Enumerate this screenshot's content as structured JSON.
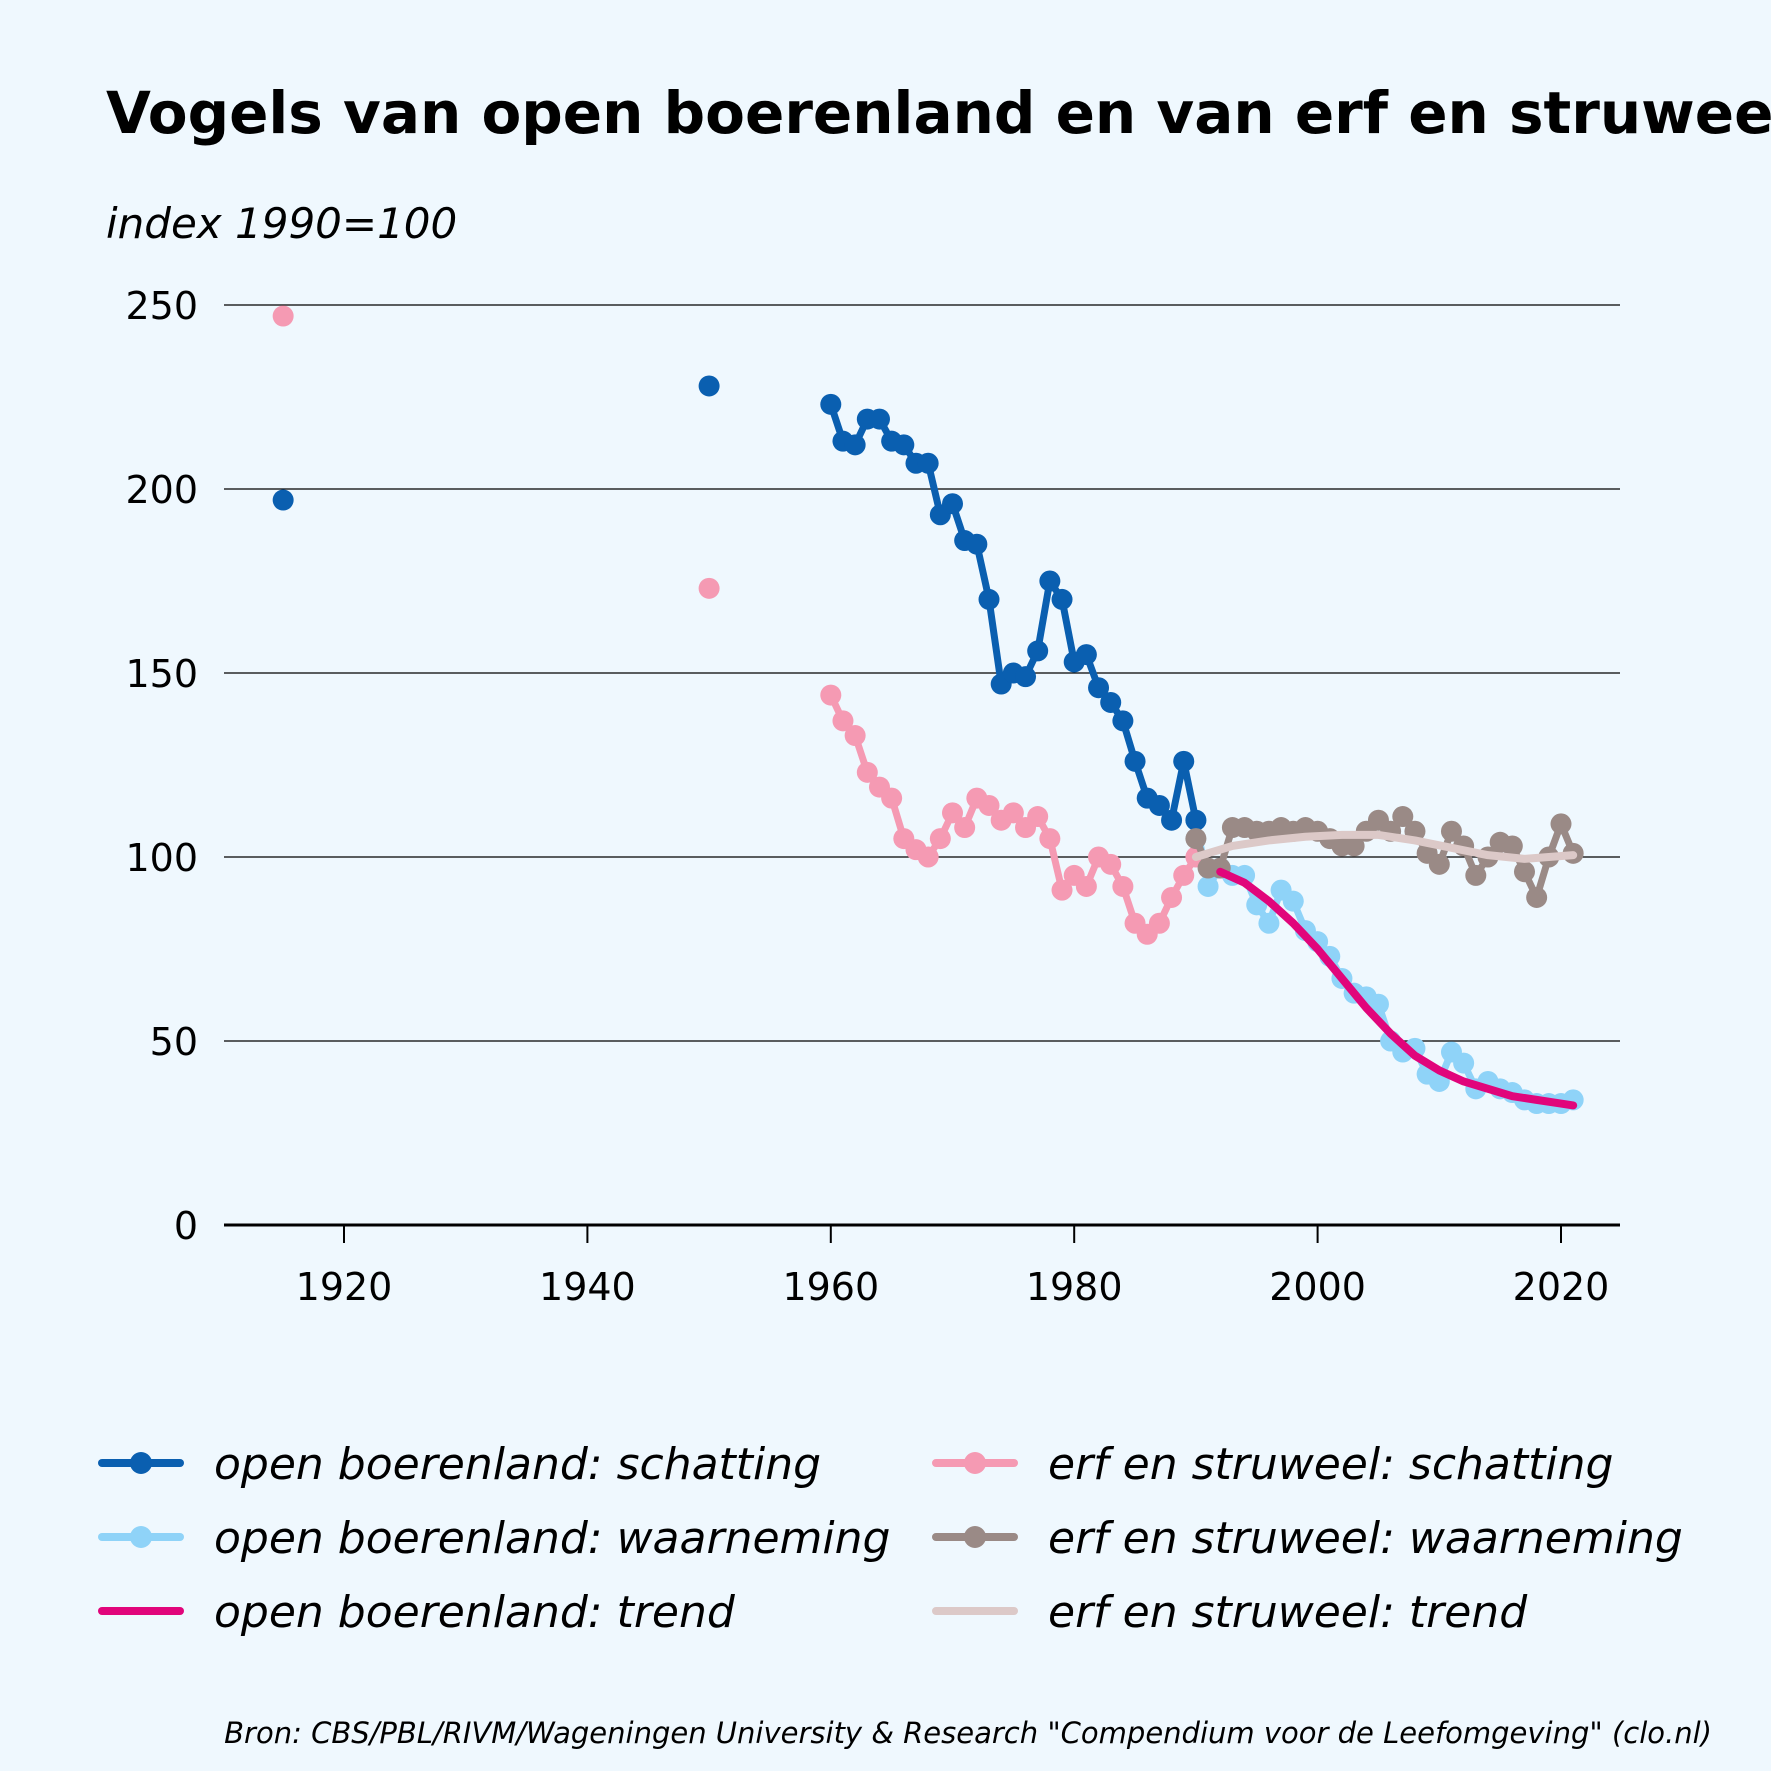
{
  "chart_data": {
    "type": "line",
    "title": "Vogels van open boerenland en van erf en struweel",
    "subtitle": "index 1990=100",
    "source": "Bron: CBS/PBL/RIVM/Wageningen University & Research \"Compendium voor de Leefomgeving\" (clo.nl)",
    "xlim": [
      1910,
      2025
    ],
    "ylim": [
      0,
      250
    ],
    "xticks": [
      1920,
      1940,
      1960,
      1980,
      2000,
      2020
    ],
    "yticks": [
      0,
      50,
      100,
      150,
      200,
      250
    ],
    "grid": "horizontal",
    "legend_position": "bottom",
    "series": [
      {
        "name": "open boerenland: schatting",
        "color": "#0a5fb0",
        "style": "line+markers",
        "points": [
          [
            1915,
            197
          ],
          [
            1950,
            228
          ]
        ],
        "x": [
          1960,
          1961,
          1962,
          1963,
          1964,
          1965,
          1966,
          1967,
          1968,
          1969,
          1970,
          1971,
          1972,
          1973,
          1974,
          1975,
          1976,
          1977,
          1978,
          1979,
          1980,
          1981,
          1982,
          1983,
          1984,
          1985,
          1986,
          1987,
          1988,
          1989,
          1990
        ],
        "values": [
          223,
          213,
          212,
          219,
          219,
          213,
          212,
          207,
          207,
          193,
          196,
          186,
          185,
          170,
          147,
          150,
          149,
          156,
          175,
          170,
          153,
          155,
          146,
          142,
          137,
          126,
          116,
          114,
          110,
          126,
          110
        ]
      },
      {
        "name": "open boerenland: waarneming",
        "color": "#8fd3f8",
        "style": "line+markers",
        "x": [
          1990,
          1991,
          1992,
          1993,
          1994,
          1995,
          1996,
          1997,
          1998,
          1999,
          2000,
          2001,
          2002,
          2003,
          2004,
          2005,
          2006,
          2007,
          2008,
          2009,
          2010,
          2011,
          2012,
          2013,
          2014,
          2015,
          2016,
          2017,
          2018,
          2019,
          2020,
          2021
        ],
        "values": [
          110,
          92,
          97,
          95,
          95,
          87,
          82,
          91,
          88,
          80,
          77,
          73,
          67,
          63,
          62,
          60,
          50,
          47,
          48,
          41,
          39,
          47,
          44,
          37,
          39,
          37,
          36,
          34,
          33,
          33,
          33,
          34
        ]
      },
      {
        "name": "open boerenland: trend",
        "color": "#e1057b",
        "style": "line",
        "x": [
          1992,
          1994,
          1996,
          1998,
          2000,
          2002,
          2004,
          2006,
          2008,
          2010,
          2012,
          2014,
          2016,
          2018,
          2020,
          2021
        ],
        "values": [
          96,
          93,
          88,
          82,
          75,
          67,
          59,
          52,
          46,
          42,
          39,
          37,
          35,
          34,
          33,
          32.5
        ]
      },
      {
        "name": "erf en struweel: schatting",
        "color": "#f59ab3",
        "style": "line+markers",
        "points": [
          [
            1915,
            247
          ],
          [
            1950,
            173
          ]
        ],
        "x": [
          1960,
          1961,
          1962,
          1963,
          1964,
          1965,
          1966,
          1967,
          1968,
          1969,
          1970,
          1971,
          1972,
          1973,
          1974,
          1975,
          1976,
          1977,
          1978,
          1979,
          1980,
          1981,
          1982,
          1983,
          1984,
          1985,
          1986,
          1987,
          1988,
          1989,
          1990
        ],
        "values": [
          144,
          137,
          133,
          123,
          119,
          116,
          105,
          102,
          100,
          105,
          112,
          108,
          116,
          114,
          110,
          112,
          108,
          111,
          105,
          91,
          95,
          92,
          100,
          98,
          92,
          82,
          79,
          82,
          89,
          95,
          100
        ]
      },
      {
        "name": "erf en struweel: waarneming",
        "color": "#9a8a86",
        "style": "line+markers",
        "x": [
          1990,
          1991,
          1992,
          1993,
          1994,
          1995,
          1996,
          1997,
          1998,
          1999,
          2000,
          2001,
          2002,
          2003,
          2004,
          2005,
          2006,
          2007,
          2008,
          2009,
          2010,
          2011,
          2012,
          2013,
          2014,
          2015,
          2016,
          2017,
          2018,
          2019,
          2020,
          2021
        ],
        "values": [
          105,
          97,
          97,
          108,
          108,
          107,
          107,
          108,
          107,
          108,
          107,
          105,
          103,
          103,
          107,
          110,
          107,
          111,
          107,
          101,
          98,
          107,
          103,
          95,
          100,
          104,
          103,
          96,
          89,
          100,
          109,
          101
        ]
      },
      {
        "name": "erf en struweel: trend",
        "color": "#dcc9c8",
        "style": "line",
        "x": [
          1990,
          1993,
          1996,
          1999,
          2002,
          2005,
          2008,
          2011,
          2014,
          2017,
          2019,
          2021
        ],
        "values": [
          100,
          103,
          104.5,
          105.5,
          106,
          106,
          104.5,
          102.5,
          100.5,
          99.5,
          100,
          100.5
        ]
      }
    ]
  }
}
